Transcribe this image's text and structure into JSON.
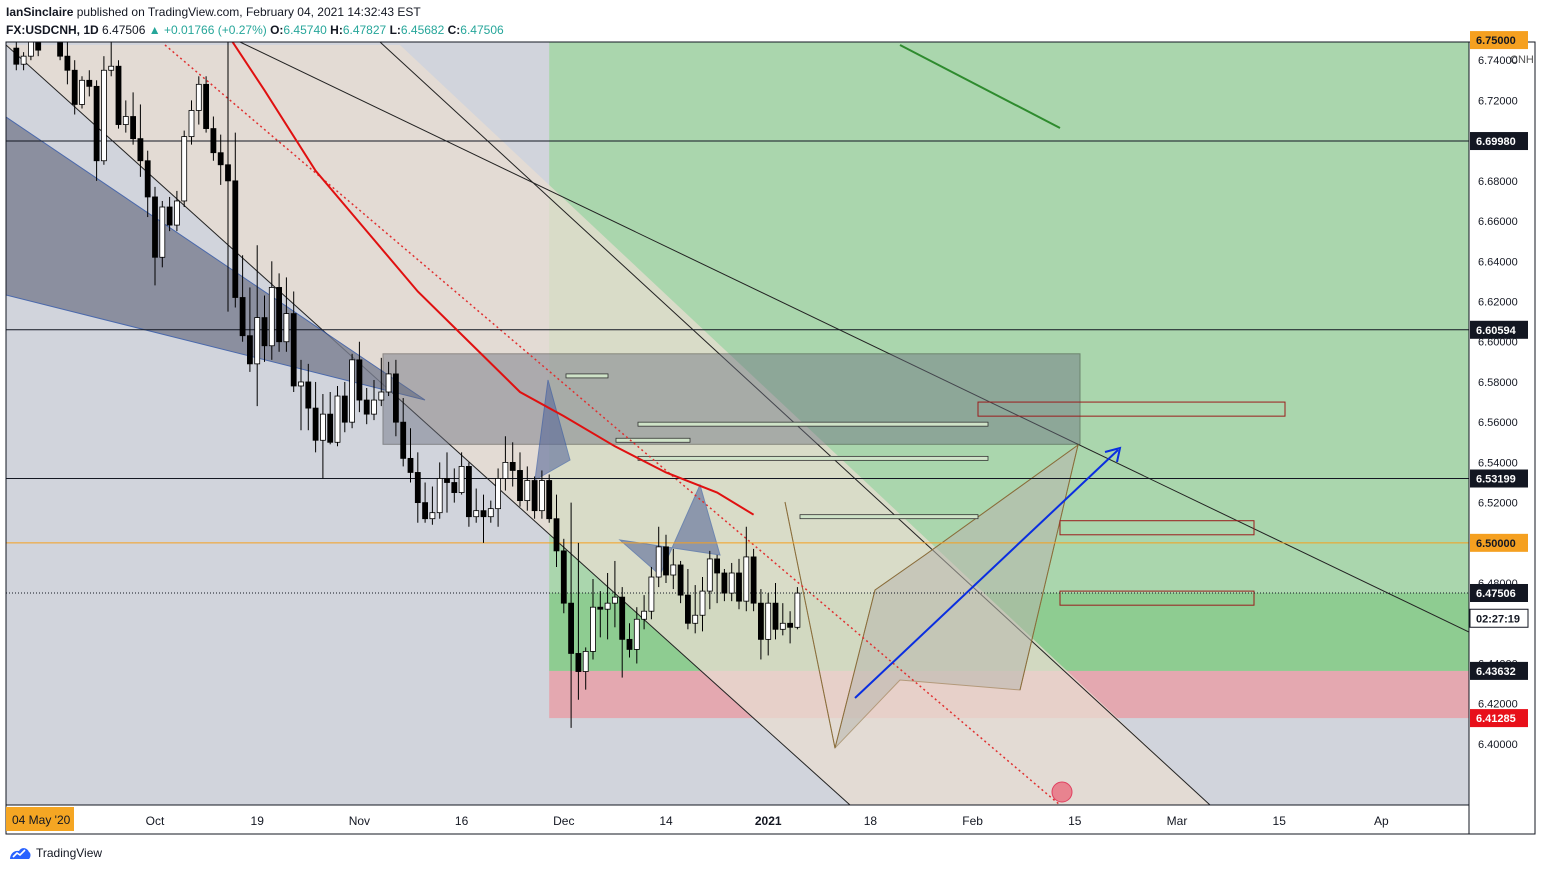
{
  "header": {
    "author": "IanSinclaire",
    "published_text": "published on TradingView.com, February 04, 2021 14:32:43 EST"
  },
  "ohlc": {
    "symbol": "FX:USDCNH, 1D",
    "last": "6.47506",
    "change": "+0.01766 (+0.27%)",
    "o_label": "O:",
    "o": "6.45740",
    "h_label": "H:",
    "h": "6.47827",
    "l_label": "L:",
    "l": "6.45682",
    "c_label": "C:",
    "c": "6.47506"
  },
  "footer": {
    "brand": "TradingView"
  },
  "colors": {
    "up": "#ffffff",
    "down": "#000000",
    "ma": "#e01010",
    "grid_bg": "#d1d4dc",
    "channel": "#e8ddd2",
    "green_zone": "#a5d6a7",
    "red_zone": "#e8a0a8",
    "blue_arrow": "#0a2ee0",
    "orange_line": "#f5a020"
  },
  "chart_data": {
    "type": "candlestick",
    "currency_label": "CNH",
    "y_ticks": [
      "6.74000",
      "6.72000",
      "6.68000",
      "6.66000",
      "6.64000",
      "6.62000",
      "6.60000",
      "6.58000",
      "6.56000",
      "6.54000",
      "6.52000",
      "6.48000",
      "6.46000",
      "6.44000",
      "6.42000",
      "6.40000"
    ],
    "y_tick_values": [
      6.74,
      6.72,
      6.68,
      6.66,
      6.64,
      6.62,
      6.6,
      6.58,
      6.56,
      6.54,
      6.52,
      6.48,
      6.46,
      6.44,
      6.42,
      6.4
    ],
    "ylim": [
      6.39,
      6.758
    ],
    "x_ticks": [
      "Oct",
      "19",
      "Nov",
      "16",
      "Dec",
      "14",
      "2021",
      "18",
      "Feb",
      "15",
      "Mar",
      "15",
      "Ap"
    ],
    "x_tick_days": [
      130,
      144,
      158,
      172,
      186,
      200,
      214,
      228,
      242,
      256,
      270,
      284,
      298
    ],
    "x_start_label": "04 May '20",
    "price_labels": [
      {
        "text": "6.75000",
        "value": 6.75,
        "style": "orange"
      },
      {
        "text": "6.69980",
        "value": 6.6998,
        "style": "black"
      },
      {
        "text": "6.60594",
        "value": 6.60594,
        "style": "black"
      },
      {
        "text": "6.53199",
        "value": 6.53199,
        "style": "black"
      },
      {
        "text": "6.50000",
        "value": 6.5,
        "style": "orange"
      },
      {
        "text": "6.47506",
        "value": 6.47506,
        "style": "black"
      },
      {
        "text": "02:27:19",
        "value": 6.4625,
        "style": "white"
      },
      {
        "text": "6.43632",
        "value": 6.43632,
        "style": "black"
      },
      {
        "text": "6.41285",
        "value": 6.41285,
        "style": "red"
      }
    ],
    "candles": [
      [
        111,
        6.746,
        6.752,
        6.735,
        6.738
      ],
      [
        112,
        6.738,
        6.744,
        6.735,
        6.742
      ],
      [
        113,
        6.742,
        6.756,
        6.74,
        6.75
      ],
      [
        114,
        6.75,
        6.758,
        6.742,
        6.745
      ],
      [
        117,
        6.755,
        6.758,
        6.74,
        6.742
      ],
      [
        118,
        6.742,
        6.75,
        6.728,
        6.735
      ],
      [
        119,
        6.735,
        6.74,
        6.713,
        6.718
      ],
      [
        120,
        6.718,
        6.732,
        6.716,
        6.73
      ],
      [
        121,
        6.73,
        6.735,
        6.722,
        6.727
      ],
      [
        122,
        6.727,
        6.73,
        6.68,
        6.69
      ],
      [
        123,
        6.69,
        6.742,
        6.688,
        6.735
      ],
      [
        124,
        6.735,
        6.75,
        6.732,
        6.737
      ],
      [
        125,
        6.737,
        6.74,
        6.706,
        6.708
      ],
      [
        126,
        6.708,
        6.72,
        6.704,
        6.712
      ],
      [
        127,
        6.712,
        6.724,
        6.698,
        6.701
      ],
      [
        128,
        6.701,
        6.718,
        6.682,
        6.69
      ],
      [
        129,
        6.69,
        6.695,
        6.662,
        6.672
      ],
      [
        130,
        6.672,
        6.677,
        6.628,
        6.642
      ],
      [
        131,
        6.642,
        6.67,
        6.637,
        6.667
      ],
      [
        132,
        6.667,
        6.672,
        6.655,
        6.658
      ],
      [
        133,
        6.658,
        6.675,
        6.655,
        6.67
      ],
      [
        134,
        6.67,
        6.705,
        6.667,
        6.702
      ],
      [
        135,
        6.702,
        6.72,
        6.698,
        6.715
      ],
      [
        136,
        6.715,
        6.732,
        6.708,
        6.728
      ],
      [
        137,
        6.728,
        6.732,
        6.704,
        6.706
      ],
      [
        138,
        6.706,
        6.712,
        6.69,
        6.694
      ],
      [
        139,
        6.694,
        6.703,
        6.678,
        6.688
      ],
      [
        140,
        6.688,
        6.758,
        6.615,
        6.68
      ],
      [
        141,
        6.68,
        6.704,
        6.617,
        6.622
      ],
      [
        142,
        6.622,
        6.643,
        6.6,
        6.603
      ],
      [
        143,
        6.603,
        6.627,
        6.585,
        6.589
      ],
      [
        144,
        6.589,
        6.648,
        6.568,
        6.612
      ],
      [
        145,
        6.612,
        6.623,
        6.59,
        6.598
      ],
      [
        146,
        6.598,
        6.64,
        6.591,
        6.627
      ],
      [
        147,
        6.627,
        6.634,
        6.595,
        6.6
      ],
      [
        148,
        6.6,
        6.632,
        6.595,
        6.614
      ],
      [
        149,
        6.614,
        6.625,
        6.575,
        6.578
      ],
      [
        150,
        6.578,
        6.591,
        6.556,
        6.58
      ],
      [
        151,
        6.58,
        6.589,
        6.556,
        6.567
      ],
      [
        152,
        6.567,
        6.58,
        6.545,
        6.551
      ],
      [
        153,
        6.551,
        6.574,
        6.532,
        6.564
      ],
      [
        154,
        6.564,
        6.575,
        6.549,
        6.55
      ],
      [
        155,
        6.55,
        6.578,
        6.548,
        6.573
      ],
      [
        156,
        6.573,
        6.58,
        6.555,
        6.56
      ],
      [
        157,
        6.56,
        6.594,
        6.557,
        6.591
      ],
      [
        158,
        6.591,
        6.6,
        6.565,
        6.571
      ],
      [
        159,
        6.571,
        6.577,
        6.559,
        6.564
      ],
      [
        160,
        6.564,
        6.581,
        6.561,
        6.571
      ],
      [
        161,
        6.571,
        6.592,
        6.568,
        6.575
      ],
      [
        162,
        6.575,
        6.59,
        6.573,
        6.584
      ],
      [
        163,
        6.584,
        6.591,
        6.553,
        6.56
      ],
      [
        164,
        6.56,
        6.572,
        6.538,
        6.542
      ],
      [
        165,
        6.542,
        6.557,
        6.53,
        6.535
      ],
      [
        166,
        6.535,
        6.545,
        6.51,
        6.52
      ],
      [
        167,
        6.52,
        6.53,
        6.51,
        6.512
      ],
      [
        168,
        6.512,
        6.528,
        6.509,
        6.515
      ],
      [
        169,
        6.515,
        6.54,
        6.512,
        6.532
      ],
      [
        170,
        6.532,
        6.545,
        6.515,
        6.53
      ],
      [
        171,
        6.53,
        6.537,
        6.52,
        6.525
      ],
      [
        172,
        6.525,
        6.545,
        6.524,
        6.538
      ],
      [
        173,
        6.538,
        6.54,
        6.508,
        6.513
      ],
      [
        174,
        6.513,
        6.527,
        6.51,
        6.516
      ],
      [
        175,
        6.516,
        6.524,
        6.5,
        6.513
      ],
      [
        176,
        6.513,
        6.521,
        6.51,
        6.517
      ],
      [
        177,
        6.517,
        6.537,
        6.508,
        6.532
      ],
      [
        178,
        6.532,
        6.553,
        6.526,
        6.54
      ],
      [
        179,
        6.54,
        6.55,
        6.528,
        6.536
      ],
      [
        180,
        6.536,
        6.545,
        6.518,
        6.521
      ],
      [
        181,
        6.521,
        6.538,
        6.516,
        6.531
      ],
      [
        182,
        6.531,
        6.533,
        6.512,
        6.516
      ],
      [
        183,
        6.516,
        6.536,
        6.512,
        6.531
      ],
      [
        184,
        6.531,
        6.534,
        6.51,
        6.512
      ],
      [
        185,
        6.512,
        6.524,
        6.488,
        6.496
      ],
      [
        186,
        6.496,
        6.502,
        6.465,
        6.47
      ],
      [
        187,
        6.47,
        6.52,
        6.408,
        6.445
      ],
      [
        188,
        6.445,
        6.5,
        6.422,
        6.436
      ],
      [
        189,
        6.436,
        6.448,
        6.427,
        6.446
      ],
      [
        190,
        6.446,
        6.482,
        6.442,
        6.468
      ],
      [
        191,
        6.468,
        6.476,
        6.453,
        6.467
      ],
      [
        192,
        6.467,
        6.485,
        6.452,
        6.47
      ],
      [
        193,
        6.47,
        6.491,
        6.458,
        6.473
      ],
      [
        194,
        6.473,
        6.478,
        6.433,
        6.452
      ],
      [
        195,
        6.452,
        6.46,
        6.443,
        6.447
      ],
      [
        196,
        6.447,
        6.468,
        6.44,
        6.462
      ],
      [
        197,
        6.462,
        6.474,
        6.457,
        6.466
      ],
      [
        198,
        6.466,
        6.488,
        6.462,
        6.483
      ],
      [
        199,
        6.483,
        6.508,
        6.478,
        6.498
      ],
      [
        200,
        6.498,
        6.504,
        6.48,
        6.484
      ],
      [
        201,
        6.484,
        6.497,
        6.477,
        6.489
      ],
      [
        202,
        6.489,
        6.491,
        6.47,
        6.474
      ],
      [
        203,
        6.474,
        6.487,
        6.457,
        6.46
      ],
      [
        204,
        6.46,
        6.479,
        6.455,
        6.464
      ],
      [
        205,
        6.464,
        6.483,
        6.456,
        6.476
      ],
      [
        206,
        6.476,
        6.496,
        6.467,
        6.492
      ],
      [
        207,
        6.492,
        6.494,
        6.47,
        6.485
      ],
      [
        208,
        6.485,
        6.487,
        6.471,
        6.475
      ],
      [
        209,
        6.475,
        6.49,
        6.471,
        6.485
      ],
      [
        210,
        6.485,
        6.492,
        6.467,
        6.471
      ],
      [
        211,
        6.471,
        6.508,
        6.466,
        6.493
      ],
      [
        212,
        6.493,
        6.497,
        6.466,
        6.47
      ],
      [
        213,
        6.47,
        6.477,
        6.442,
        6.452
      ],
      [
        214,
        6.452,
        6.475,
        6.444,
        6.47
      ],
      [
        215,
        6.47,
        6.48,
        6.452,
        6.457
      ],
      [
        216,
        6.457,
        6.47,
        6.454,
        6.46
      ],
      [
        217,
        6.46,
        6.466,
        6.45,
        6.458
      ],
      [
        218,
        6.458,
        6.478,
        6.457,
        6.475
      ]
    ],
    "moving_average": [
      [
        139,
        6.758
      ],
      [
        145,
        6.725
      ],
      [
        152,
        6.685
      ],
      [
        159,
        6.655
      ],
      [
        166,
        6.625
      ],
      [
        173,
        6.6
      ],
      [
        180,
        6.575
      ],
      [
        186,
        6.563
      ],
      [
        193,
        6.548
      ],
      [
        200,
        6.535
      ],
      [
        207,
        6.525
      ],
      [
        212,
        6.514
      ]
    ],
    "horizontal_lines": [
      6.75,
      6.6998,
      6.60594,
      6.53199,
      6.5
    ],
    "zones": [
      {
        "kind": "long-target",
        "from_day": 184,
        "to_day": 300,
        "top": 6.758,
        "bottom": 6.43632
      },
      {
        "kind": "stop",
        "from_day": 184,
        "to_day": 300,
        "top": 6.43632,
        "bottom": 6.41285
      }
    ]
  }
}
